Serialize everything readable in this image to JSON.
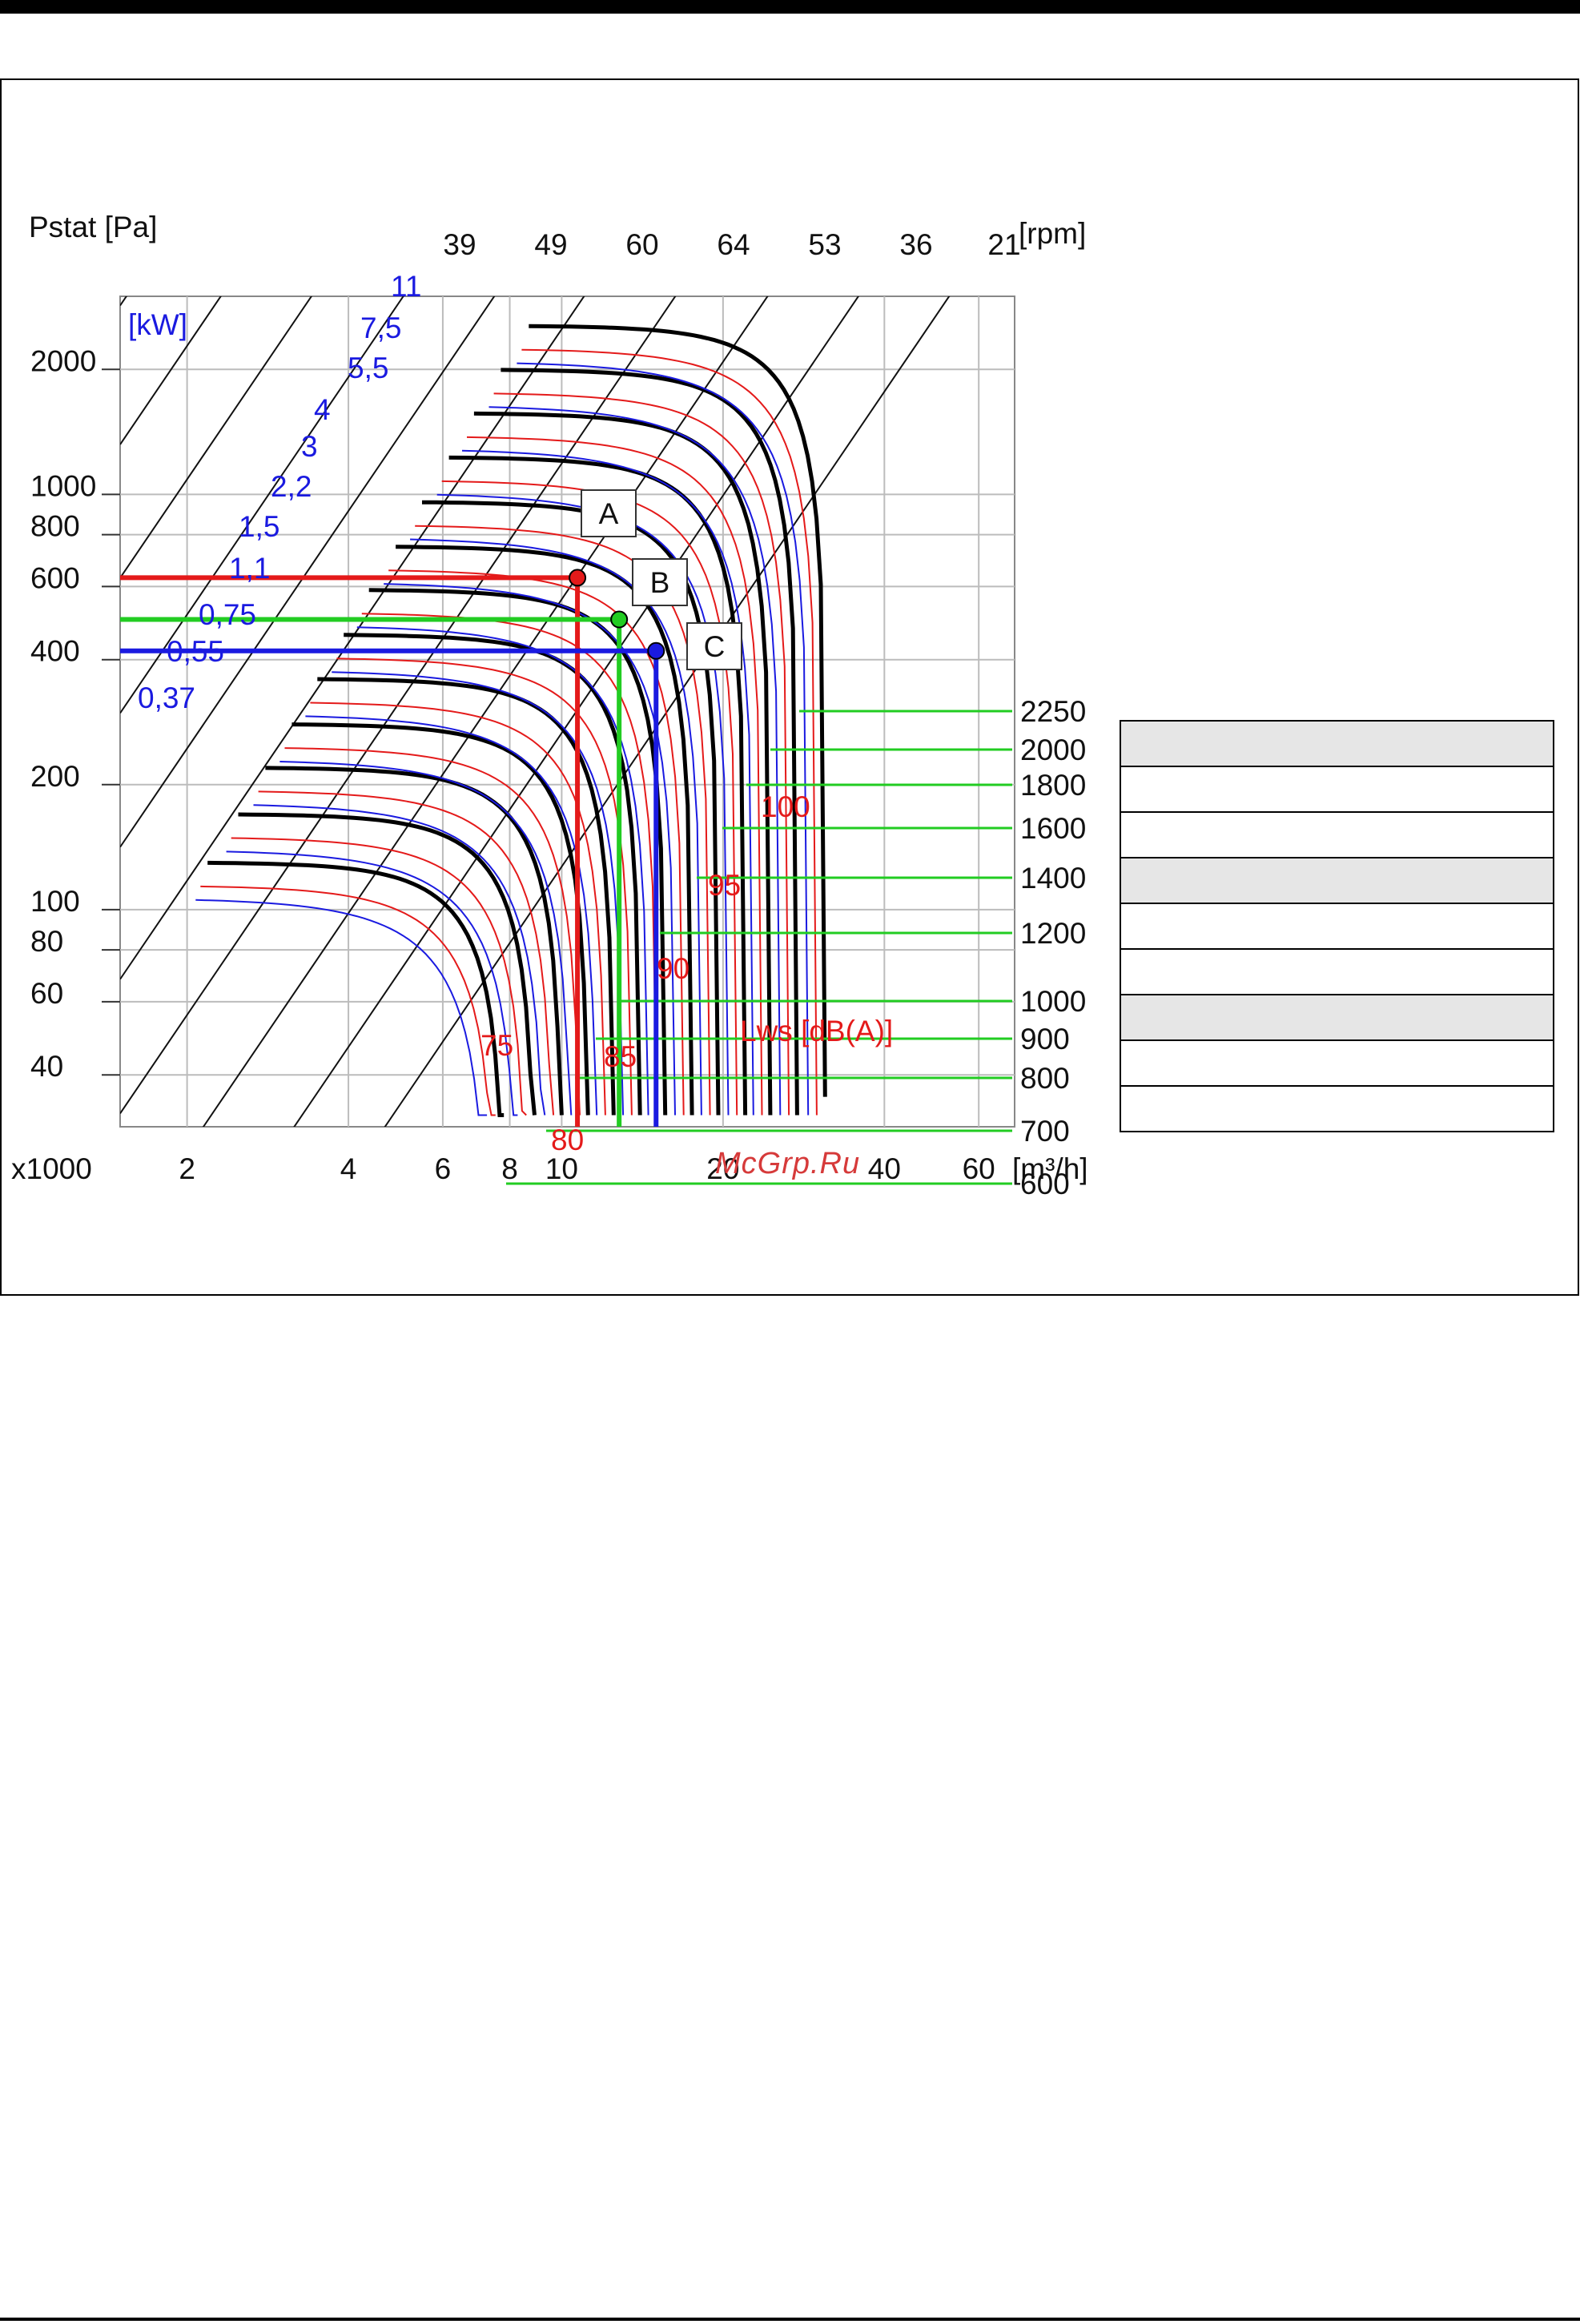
{
  "watermark": "McGrp.Ru",
  "chart_data": {
    "type": "line",
    "title": "",
    "xlabel": "[m³/h]",
    "x_multiplier": "x1000",
    "ylabel": "Pstat [Pa]",
    "power_unit": "[kW]",
    "speed_unit": "[rpm]",
    "sound_label": "Lws [dB(A)]",
    "x_scale": "log",
    "y_scale": "log",
    "xlim": [
      1.5,
      70
    ],
    "ylim": [
      30,
      3000
    ],
    "grid": true,
    "x_ticks": [
      {
        "v": 2,
        "t": "2"
      },
      {
        "v": 4,
        "t": "4"
      },
      {
        "v": 6,
        "t": "6"
      },
      {
        "v": 8,
        "t": "8"
      },
      {
        "v": 10,
        "t": "10"
      },
      {
        "v": 20,
        "t": "20"
      },
      {
        "v": 40,
        "t": "40"
      },
      {
        "v": 60,
        "t": "60"
      }
    ],
    "y_ticks": [
      {
        "v": 40,
        "t": "40"
      },
      {
        "v": 60,
        "t": "60"
      },
      {
        "v": 80,
        "t": "80"
      },
      {
        "v": 100,
        "t": "100"
      },
      {
        "v": 200,
        "t": "200"
      },
      {
        "v": 400,
        "t": "400"
      },
      {
        "v": 600,
        "t": "600"
      },
      {
        "v": 800,
        "t": "800"
      },
      {
        "v": 1000,
        "t": "1000"
      },
      {
        "v": 2000,
        "t": "2000"
      }
    ],
    "rpm_scale": [
      "39",
      "49",
      "60",
      "64",
      "53",
      "36",
      "21"
    ],
    "power_labels": [
      "11",
      "7,5",
      "5,5",
      "4",
      "3",
      "2,2",
      "1,5",
      "1,1",
      "0,75",
      "0,55",
      "0,37"
    ],
    "speed_scale_right": [
      "2250",
      "2000",
      "1800",
      "1600",
      "1400",
      "1200",
      "1000",
      "900",
      "800",
      "700",
      "600"
    ],
    "sound_levels": [
      "100",
      "95",
      "90",
      "85",
      "80",
      "75"
    ],
    "operating_points": [
      {
        "label": "A",
        "x": 10.7,
        "y": 630,
        "color": "#e41a1a"
      },
      {
        "label": "B",
        "x": 12.8,
        "y": 500,
        "color": "#22cc22"
      },
      {
        "label": "C",
        "x": 15.0,
        "y": 420,
        "color": "#1a1ae0"
      }
    ],
    "fan_curves": [
      {
        "q0": 7.8,
        "p0": 130
      },
      {
        "q0": 8.9,
        "p0": 170
      },
      {
        "q0": 10.0,
        "p0": 220
      },
      {
        "q0": 11.2,
        "p0": 280
      },
      {
        "q0": 12.5,
        "p0": 360
      },
      {
        "q0": 14.0,
        "p0": 460
      },
      {
        "q0": 15.6,
        "p0": 590
      },
      {
        "q0": 17.5,
        "p0": 750
      },
      {
        "q0": 19.6,
        "p0": 960
      },
      {
        "q0": 22.0,
        "p0": 1230
      },
      {
        "q0": 24.5,
        "p0": 1570
      },
      {
        "q0": 27.5,
        "p0": 2000
      },
      {
        "q0": 31.0,
        "p0": 2550
      }
    ]
  },
  "table": {
    "rows": [
      {
        "shaded": true
      },
      {
        "shaded": false
      },
      {
        "shaded": false
      },
      {
        "shaded": true
      },
      {
        "shaded": false
      },
      {
        "shaded": false
      },
      {
        "shaded": true
      },
      {
        "shaded": false
      },
      {
        "shaded": false
      }
    ]
  }
}
